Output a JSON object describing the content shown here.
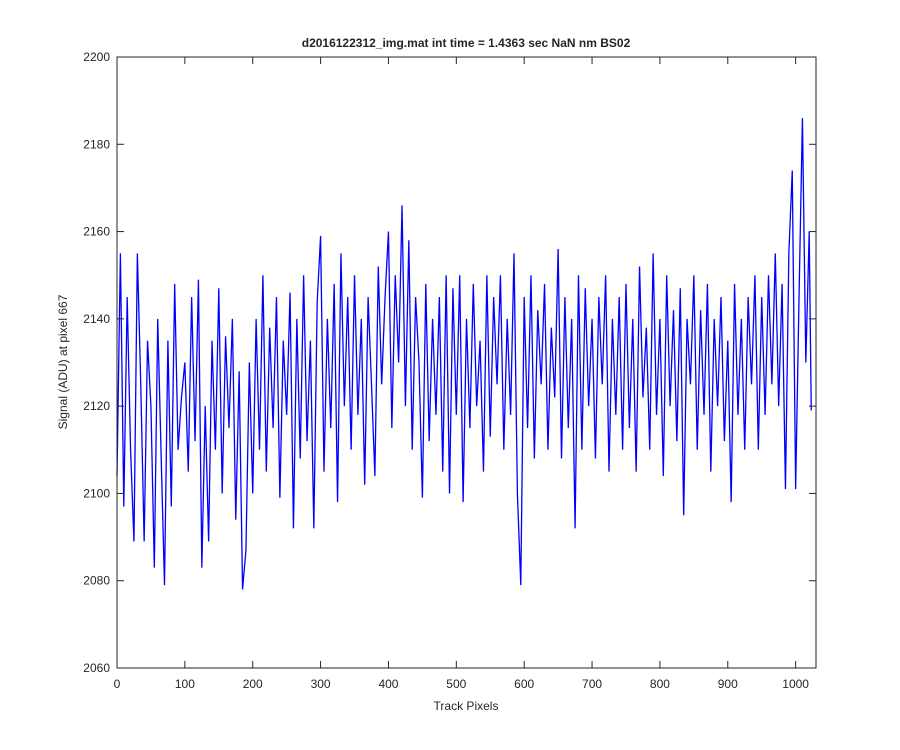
{
  "chart_data": {
    "type": "line",
    "title": "d2016122312_img.mat int time = 1.4363 sec  NaN nm BS02",
    "x_label": "Track Pixels",
    "y_label": "Signal (ADU) at pixel 667",
    "xlim": [
      0,
      1030
    ],
    "ylim": [
      2060,
      2200
    ],
    "xticks": [
      0,
      100,
      200,
      300,
      400,
      500,
      600,
      700,
      800,
      900,
      1000
    ],
    "yticks": [
      2060,
      2080,
      2100,
      2120,
      2140,
      2160,
      2180,
      2200
    ],
    "grid": false,
    "x": [
      0,
      5,
      10,
      15,
      20,
      25,
      30,
      35,
      40,
      45,
      50,
      55,
      60,
      65,
      70,
      75,
      80,
      85,
      90,
      95,
      100,
      105,
      110,
      115,
      120,
      125,
      130,
      135,
      140,
      145,
      150,
      155,
      160,
      165,
      170,
      175,
      180,
      185,
      190,
      195,
      200,
      205,
      210,
      215,
      220,
      225,
      230,
      235,
      240,
      245,
      250,
      255,
      260,
      265,
      270,
      275,
      280,
      285,
      290,
      295,
      300,
      305,
      310,
      315,
      320,
      325,
      330,
      335,
      340,
      345,
      350,
      355,
      360,
      365,
      370,
      375,
      380,
      385,
      390,
      395,
      400,
      405,
      410,
      415,
      420,
      425,
      430,
      435,
      440,
      445,
      450,
      455,
      460,
      465,
      470,
      475,
      480,
      485,
      490,
      495,
      500,
      505,
      510,
      515,
      520,
      525,
      530,
      535,
      540,
      545,
      550,
      555,
      560,
      565,
      570,
      575,
      580,
      585,
      590,
      595,
      600,
      605,
      610,
      615,
      620,
      625,
      630,
      635,
      640,
      645,
      650,
      655,
      660,
      665,
      670,
      675,
      680,
      685,
      690,
      695,
      700,
      705,
      710,
      715,
      720,
      725,
      730,
      735,
      740,
      745,
      750,
      755,
      760,
      765,
      770,
      775,
      780,
      785,
      790,
      795,
      800,
      805,
      810,
      815,
      820,
      825,
      830,
      835,
      840,
      845,
      850,
      855,
      860,
      865,
      870,
      875,
      880,
      885,
      890,
      895,
      900,
      905,
      910,
      915,
      920,
      925,
      930,
      935,
      940,
      945,
      950,
      955,
      960,
      965,
      970,
      975,
      980,
      985,
      990,
      995,
      1000,
      1005,
      1010,
      1015,
      1020,
      1023
    ],
    "series": [
      {
        "name": "signal",
        "color": "#0000ff",
        "values": [
          2104,
          2155,
          2097,
          2145,
          2110,
          2089,
          2155,
          2125,
          2089,
          2135,
          2120,
          2083,
          2140,
          2109,
          2079,
          2135,
          2097,
          2148,
          2110,
          2122,
          2130,
          2105,
          2145,
          2112,
          2149,
          2083,
          2120,
          2089,
          2135,
          2110,
          2147,
          2100,
          2136,
          2115,
          2140,
          2094,
          2128,
          2078,
          2087,
          2130,
          2100,
          2140,
          2110,
          2150,
          2105,
          2138,
          2115,
          2145,
          2099,
          2135,
          2118,
          2146,
          2092,
          2140,
          2108,
          2150,
          2112,
          2135,
          2092,
          2144,
          2159,
          2105,
          2140,
          2115,
          2148,
          2098,
          2155,
          2120,
          2145,
          2110,
          2150,
          2118,
          2140,
          2102,
          2145,
          2125,
          2104,
          2152,
          2125,
          2145,
          2160,
          2115,
          2150,
          2130,
          2166,
          2120,
          2158,
          2110,
          2145,
          2130,
          2099,
          2148,
          2112,
          2140,
          2118,
          2145,
          2105,
          2150,
          2100,
          2147,
          2118,
          2150,
          2098,
          2140,
          2115,
          2148,
          2120,
          2135,
          2105,
          2150,
          2113,
          2145,
          2125,
          2150,
          2110,
          2140,
          2118,
          2155,
          2100,
          2079,
          2145,
          2115,
          2150,
          2108,
          2142,
          2125,
          2148,
          2110,
          2138,
          2122,
          2156,
          2108,
          2145,
          2115,
          2140,
          2092,
          2150,
          2110,
          2147,
          2120,
          2140,
          2108,
          2145,
          2125,
          2150,
          2105,
          2140,
          2118,
          2145,
          2110,
          2148,
          2115,
          2140,
          2105,
          2152,
          2122,
          2138,
          2110,
          2155,
          2118,
          2140,
          2104,
          2150,
          2120,
          2142,
          2112,
          2147,
          2095,
          2140,
          2125,
          2150,
          2110,
          2142,
          2118,
          2148,
          2105,
          2140,
          2120,
          2145,
          2112,
          2135,
          2098,
          2148,
          2118,
          2140,
          2110,
          2145,
          2125,
          2150,
          2110,
          2145,
          2118,
          2150,
          2125,
          2155,
          2120,
          2148,
          2101,
          2155,
          2174,
          2101,
          2145,
          2186,
          2130,
          2160,
          2119
        ]
      }
    ]
  }
}
